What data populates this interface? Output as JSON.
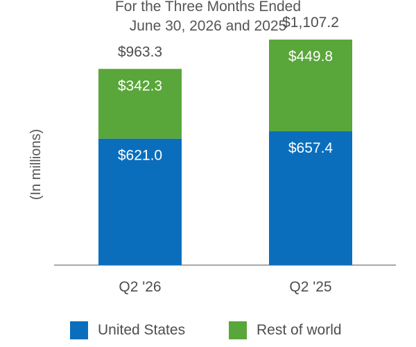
{
  "chart_data": {
    "type": "bar",
    "stacked": true,
    "title": [
      "For the Three Months Ended",
      "June 30, 2026 and 2025"
    ],
    "ylabel": "(In millions)",
    "xlabel": "",
    "categories": [
      "Q2 '26",
      "Q2 '25"
    ],
    "series": [
      {
        "name": "United States",
        "color": "#0a6ebd",
        "values": [
          621.0,
          657.4
        ],
        "labels": [
          "$621.0",
          "$657.4"
        ]
      },
      {
        "name": "Rest of world",
        "color": "#59a63a",
        "values": [
          342.3,
          449.8
        ],
        "labels": [
          "$342.3",
          "$449.8"
        ]
      }
    ],
    "totals": [
      963.3,
      1107.2
    ],
    "total_labels": [
      "$963.3",
      "$1,107.2"
    ],
    "ylim": [
      0,
      1200
    ],
    "grid": false,
    "legend_position": "bottom"
  }
}
